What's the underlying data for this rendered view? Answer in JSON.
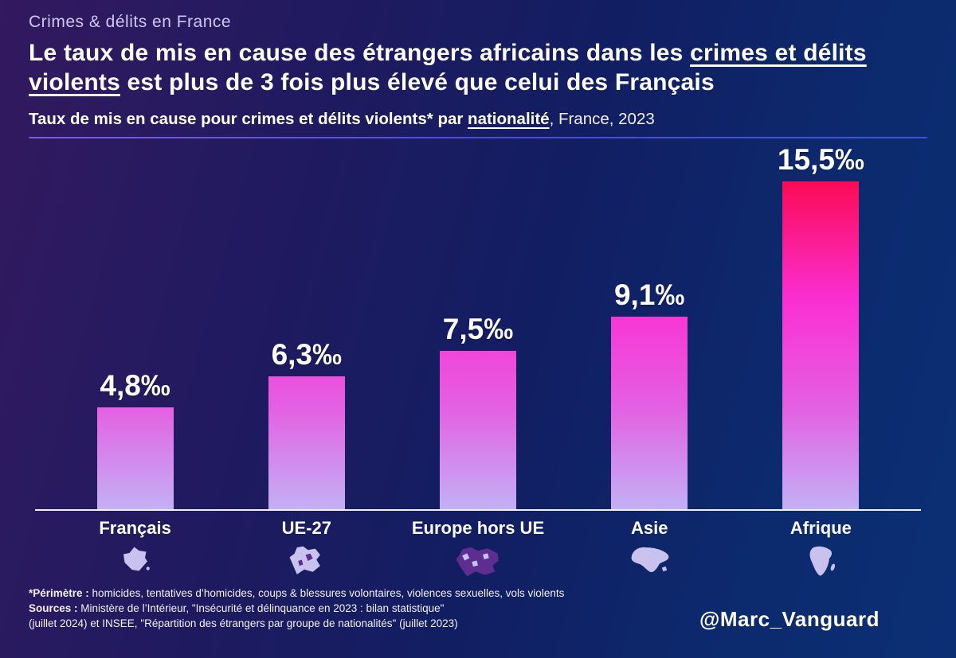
{
  "page": {
    "kicker": "Crimes & délits en France",
    "title_part1": "Le taux de mis en cause des étrangers africains dans les ",
    "title_underline": "crimes et délits violents",
    "title_part2": " est plus de 3 fois plus élevé que celui des Français",
    "subtitle_bold": "Taux de mis en cause pour crimes et délits violents* par ",
    "subtitle_underline": "nationalité",
    "subtitle_rest": ", France, 2023",
    "handle": "@Marc_Vanguard"
  },
  "footnotes": {
    "perimeter_label": "*Périmètre :",
    "perimeter_text": " homicides, tentatives d’homicides, coups & blessures volontaires, violences sexuelles, vols violents",
    "sources_label": "Sources :",
    "sources_line1": " Ministère de l’Intérieur, \"Insécurité et délinquance en 2023 : bilan statistique\"",
    "sources_line2": "(juillet 2024) et INSEE, \"Répartition des étrangers par groupe de nationalités\" (juillet 2023)"
  },
  "chart_data": {
    "type": "bar",
    "title": "Taux de mis en cause pour crimes et délits violents par nationalité, France, 2023",
    "categories": [
      "Français",
      "UE-27",
      "Europe hors UE",
      "Asie",
      "Afrique"
    ],
    "values": [
      4.8,
      6.3,
      7.5,
      9.1,
      15.5
    ],
    "value_labels": [
      "4,8‰",
      "6,3‰",
      "7,5‰",
      "9,1‰",
      "15,5‰"
    ],
    "unit": "‰",
    "ylim": [
      0,
      15.5
    ],
    "legend": "none",
    "grid": "off",
    "colors": {
      "bar_gradient_top": "#fb0b55",
      "bar_gradient_mid": "#fb2ed2",
      "bar_gradient_bottom": "#c3b0f6",
      "background_left": "#33195f",
      "background_right": "#0c2f74",
      "icon_lavender": "#c9c2ee",
      "icon_purple": "#5e2d92"
    }
  }
}
